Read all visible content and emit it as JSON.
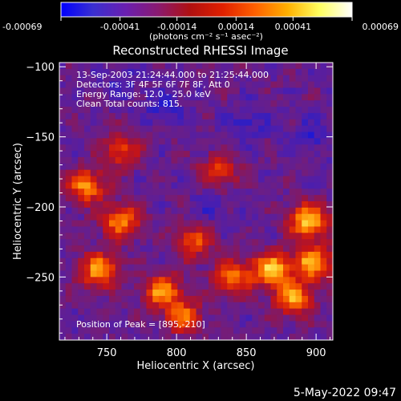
{
  "chart_data": {
    "type": "heatmap",
    "title": "Reconstructed RHESSI Image",
    "xlabel": "Heliocentric X (arcsec)",
    "ylabel": "Heliocentric Y (arcsec)",
    "xlim": [
      716,
      912
    ],
    "ylim": [
      -295,
      -97
    ],
    "x_ticks": [
      750,
      800,
      850,
      900
    ],
    "y_ticks": [
      -100,
      -150,
      -200,
      -250
    ],
    "colorbar": {
      "range": [
        -0.00069,
        0.00069
      ],
      "tick_values": [
        -0.00069,
        -0.00041,
        -0.00014,
        0.00014,
        0.00041,
        0.00069
      ],
      "tick_labels": [
        "-0.00069",
        "-0.00041",
        "-0.00014",
        "0.00014",
        "0.00041",
        "0.00069"
      ],
      "units": "(photons cm⁻² s⁻¹ asec⁻²)",
      "colors": [
        "#0000ff",
        "#3a2fd0",
        "#6a1fb0",
        "#8a1a70",
        "#b01010",
        "#e02000",
        "#ff6000",
        "#ffb000",
        "#ffff60",
        "#ffffff"
      ]
    },
    "annotations": {
      "time": "13-Sep-2003 21:24:44.000 to 21:25:44.000",
      "detectors": "Detectors: 3F 4F 5F 6F 7F 8F, Att 0",
      "energy": "Energy Range: 12.0 - 25.0 keV",
      "clean": "Clean    Total counts: 815.",
      "peak": "Position of Peak = [895,-210]"
    },
    "bright_regions": [
      {
        "x": 735,
        "y": -185,
        "level": 0.8
      },
      {
        "x": 760,
        "y": -210,
        "level": 0.75
      },
      {
        "x": 745,
        "y": -245,
        "level": 0.85
      },
      {
        "x": 790,
        "y": -260,
        "level": 0.8
      },
      {
        "x": 812,
        "y": -225,
        "level": 0.6
      },
      {
        "x": 840,
        "y": -250,
        "level": 0.7
      },
      {
        "x": 868,
        "y": -245,
        "level": 0.95
      },
      {
        "x": 895,
        "y": -210,
        "level": 1.0
      },
      {
        "x": 898,
        "y": -240,
        "level": 0.9
      },
      {
        "x": 884,
        "y": -265,
        "level": 0.8
      },
      {
        "x": 830,
        "y": -175,
        "level": 0.55
      },
      {
        "x": 760,
        "y": -160,
        "level": 0.55
      },
      {
        "x": 805,
        "y": -278,
        "level": 0.65
      }
    ],
    "dark_regions": [
      {
        "x": 790,
        "y": -130,
        "level": 0.35
      },
      {
        "x": 850,
        "y": -140,
        "level": 0.3
      },
      {
        "x": 760,
        "y": -110,
        "level": 0.25
      },
      {
        "x": 895,
        "y": -150,
        "level": 0.3
      },
      {
        "x": 825,
        "y": -200,
        "level": 0.25
      }
    ]
  },
  "footer": {
    "date": "5-May-2022 09:47"
  }
}
